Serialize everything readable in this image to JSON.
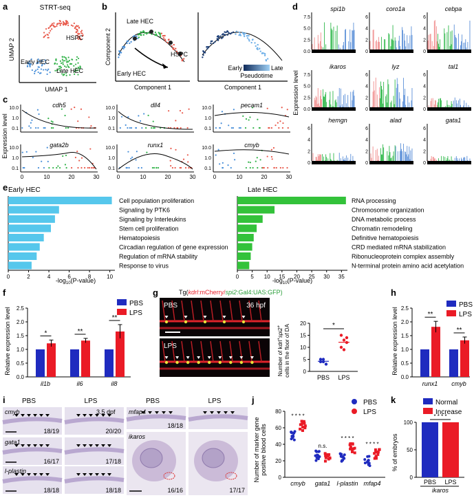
{
  "panel_letters": [
    "a",
    "b",
    "c",
    "d",
    "e",
    "f",
    "g",
    "h",
    "i",
    "j",
    "k"
  ],
  "colors": {
    "red": "#e8584a",
    "green": "#33b34a",
    "blue": "#4a90d9",
    "navy": "#1b2d9e",
    "pbs": "#1f2bbf",
    "lps": "#ea1b26",
    "hist_red": "#f08a8a",
    "hist_green": "#2fb84a",
    "hist_blue": "#5b8fd8",
    "bar_cyan": "#56c7ec",
    "bar_green": "#33c23a"
  },
  "a": {
    "title": "STRT-seq",
    "xlabel": "UMAP 1",
    "ylabel": "UMAP 2",
    "labels": [
      "HSPC",
      "Early HEC",
      "Late HEC"
    ]
  },
  "b": {
    "xlabel": "Component 1",
    "ylabel": "Component 2",
    "labels": [
      "Late HEC",
      "HSPC",
      "Early HEC"
    ],
    "legend_early": "Early",
    "legend_late": "Late",
    "legend_title": "Pseudotime"
  },
  "c": {
    "ylabel": "Expression level",
    "genes": [
      "cdh5",
      "dll4",
      "pecam1",
      "gata2b",
      "runx1",
      "cmyb"
    ],
    "yticks": [
      "10.0",
      "1.0",
      "0.1"
    ],
    "xticks": [
      "0",
      "10",
      "20",
      "30"
    ]
  },
  "d": {
    "ylabel": "Expression level",
    "genes": [
      "spi1b",
      "coro1a",
      "cebpa",
      "ikaros",
      "lyz",
      "tal1",
      "hemgn",
      "alad",
      "gata1"
    ],
    "yticks": [
      [
        "7.5",
        "5.0",
        "2.5",
        "0.0"
      ],
      [
        "6",
        "4",
        "2",
        "0"
      ],
      [
        "6",
        "4",
        "2",
        "0"
      ],
      [
        "7.5",
        "5.0",
        "2.5",
        "0.0"
      ],
      [
        "6",
        "4",
        "2",
        "0"
      ],
      [
        "6",
        "4",
        "2",
        "0"
      ],
      [
        "6",
        "4",
        "2",
        "0"
      ],
      [
        "6",
        "4",
        "2",
        "0"
      ],
      [
        "6",
        "4",
        "2",
        "0"
      ]
    ]
  },
  "e": {
    "early": {
      "title": "Early HEC",
      "terms": [
        "Cell population proliferation",
        "Signaling by PTK6",
        "Signaling by Interleukins",
        "Stem cell proliferation",
        "Hematopoiesis",
        "Circadian regulation of gene expression",
        "Regulation of mRNA stability",
        "Response to virus"
      ],
      "values": [
        10.2,
        5.0,
        4.6,
        4.2,
        3.5,
        3.1,
        2.8,
        2.3
      ],
      "xticks": [
        "0",
        "2",
        "4",
        "6",
        "8",
        "10"
      ],
      "xmax": 10.5
    },
    "late": {
      "title": "Late HEC",
      "terms": [
        "RNA processing",
        "Chromosome organization",
        "DNA metabolic process",
        "Chromatin remodeling",
        "Definitive hematopoiesis",
        "CRD mediated mRNA stabilization",
        "Ribonucleoprotein complex assembly",
        "N-terminal protein amino acid acetylation"
      ],
      "values": [
        36.5,
        12.5,
        8.5,
        6.5,
        5.5,
        5.0,
        4.5,
        4.0
      ],
      "xticks": [
        "0",
        "5",
        "10",
        "15",
        "20",
        "25",
        "30",
        "35"
      ],
      "xmax": 37
    },
    "xlabel": "-log10(P-value)"
  },
  "f": {
    "ylabel": "Relative expression level",
    "legend": [
      "PBS",
      "LPS"
    ],
    "categories": [
      "il1b",
      "il6",
      "il8"
    ],
    "pbs": [
      1.0,
      1.0,
      1.0
    ],
    "lps": [
      1.22,
      1.32,
      1.65
    ],
    "lps_err": [
      0.12,
      0.08,
      0.25
    ],
    "sig": [
      "*",
      "**",
      "**"
    ],
    "yticks": [
      "0.0",
      "0.5",
      "1.0",
      "1.5",
      "2.0",
      "2.5"
    ],
    "ymax": 2.5
  },
  "g": {
    "title_prefix": "Tg(",
    "title_kdrl": "kdrl",
    "title_mcherry": ":mCherry/",
    "title_spi2": "spi2",
    "title_gal4": ":Gal4:UAS:GFP)",
    "label_pbs": "PBS",
    "label_lps": "LPS",
    "hpf": "36 hpf",
    "ylabel1": "Number of kdrl",
    "ylabel2": "spi2",
    "ylabel3": "cells in the floor of DA",
    "categories": [
      "PBS",
      "LPS"
    ],
    "pbs_points": [
      5,
      4,
      3,
      4,
      5
    ],
    "lps_points": [
      10,
      13,
      14,
      15,
      9,
      12
    ],
    "pbs_mean": 4.2,
    "lps_mean": 12.1,
    "sig": "*",
    "yticks": [
      "0",
      "5",
      "10",
      "15",
      "20"
    ],
    "ymax": 20
  },
  "h": {
    "ylabel": "Relative expression level",
    "legend": [
      "PBS",
      "LPS"
    ],
    "categories": [
      "runx1",
      "cmyb"
    ],
    "pbs": [
      1.0,
      1.0
    ],
    "lps": [
      1.82,
      1.33
    ],
    "lps_err": [
      0.2,
      0.12
    ],
    "sig": [
      "**",
      "**"
    ],
    "yticks": [
      "0.0",
      "0.5",
      "1.0",
      "1.5",
      "2.0",
      "2.5"
    ],
    "ymax": 2.5
  },
  "i": {
    "pbs": "PBS",
    "lps": "LPS",
    "dpf": "3.5 dpf",
    "genes": [
      "cmyb",
      "gata1",
      "l-plastin",
      "mfap4",
      "ikaros"
    ],
    "counts": [
      "18/19",
      "20/20",
      "16/17",
      "17/18",
      "18/18",
      "18/18",
      "18/18",
      "16/16",
      "17/17"
    ]
  },
  "j": {
    "ylabel1": "Number of marker gene",
    "ylabel2": "positive blood cells",
    "legend": [
      "PBS",
      "LPS"
    ],
    "categories": [
      "cmyb",
      "gata1",
      "l-plastin",
      "mfap4"
    ],
    "pbs_mean": [
      50,
      26,
      23,
      20
    ],
    "lps_mean": [
      62,
      25,
      35,
      28
    ],
    "sig": [
      "* * * *",
      "n.s.",
      "* * * *",
      "* * * *"
    ],
    "yticks": [
      "0",
      "20",
      "40",
      "60",
      "80"
    ],
    "ymax": 80
  },
  "k": {
    "ylabel": "% of embryos",
    "legend": [
      "Normal",
      "Increase"
    ],
    "categories": [
      "PBS",
      "LPS"
    ],
    "values": [
      100,
      100
    ],
    "sig": "* * * *",
    "xgroup": "ikaros",
    "yticks": [
      "0",
      "50",
      "100"
    ],
    "ymax": 100
  }
}
